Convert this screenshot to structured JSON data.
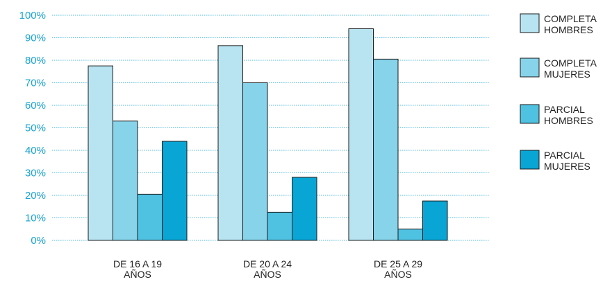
{
  "chart_data": {
    "type": "bar",
    "categories": [
      [
        "DE 16 A 19",
        "AÑOS"
      ],
      [
        "DE 20 A 24",
        "AÑOS"
      ],
      [
        "DE 25 A 29",
        "AÑOS"
      ]
    ],
    "series": [
      {
        "name": [
          "COMPLETA",
          "HOMBRES"
        ],
        "color": "#b8e4f2",
        "values": [
          77.5,
          86.5,
          94
        ]
      },
      {
        "name": [
          "COMPLETA",
          "MUJERES"
        ],
        "color": "#86d3ea",
        "values": [
          53,
          70,
          80.5
        ]
      },
      {
        "name": [
          "PARCIAL",
          "HOMBRES"
        ],
        "color": "#4fc1e1",
        "values": [
          20.5,
          12.5,
          5
        ]
      },
      {
        "name": [
          "PARCIAL",
          "MUJERES"
        ],
        "color": "#09a5d5",
        "values": [
          44,
          28,
          17.5
        ]
      }
    ],
    "y_ticks": [
      "0%",
      "10%",
      "20%",
      "30%",
      "40%",
      "50%",
      "60%",
      "70%",
      "80%",
      "90%",
      "100%"
    ],
    "ylim": [
      0,
      100
    ],
    "grid": true,
    "legend": "right",
    "axis_color": "#1aa3cf"
  }
}
